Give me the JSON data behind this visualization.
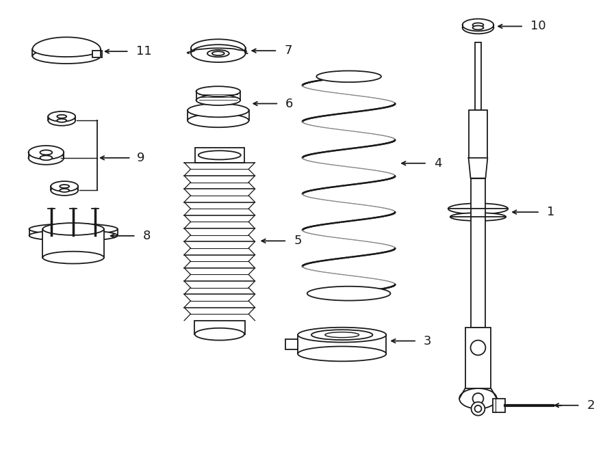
{
  "background_color": "#ffffff",
  "line_color": "#1a1a1a",
  "line_width": 1.3,
  "fig_w": 9.0,
  "fig_h": 6.61,
  "dpi": 100
}
